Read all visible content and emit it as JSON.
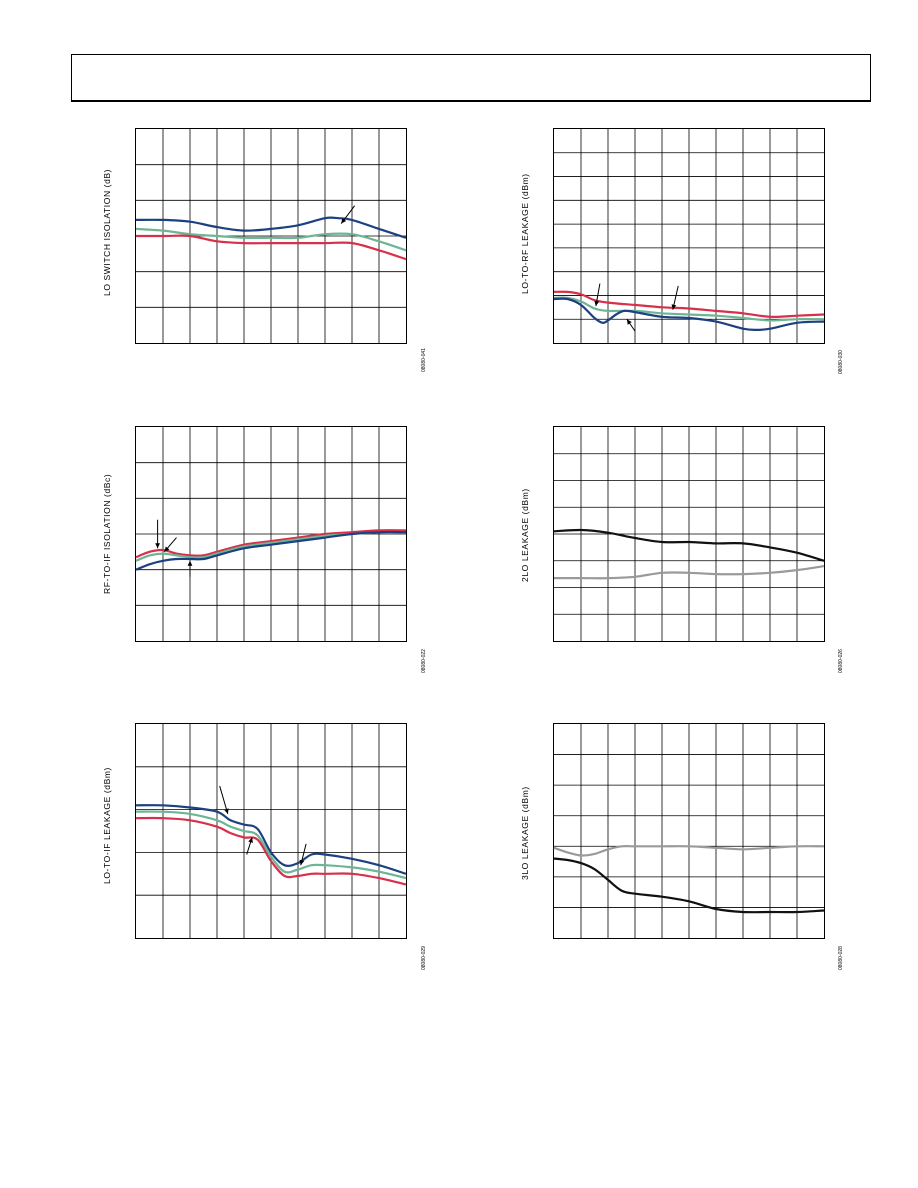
{
  "colors": {
    "navy": "#1c4080",
    "teal": "#6db595",
    "red": "#d6304a",
    "black": "#111111",
    "gray": "#9a9a9a",
    "grid": "#000000"
  },
  "header": {},
  "chart_data": [
    {
      "id": "c1",
      "type": "line",
      "ylabel": "LO SWITCH ISOLATION (dB)",
      "figure_id": "08080-041",
      "grid": true,
      "xlim": [
        0,
        10
      ],
      "ylim": [
        0,
        6
      ],
      "series": [
        {
          "color": "navy",
          "x": [
            0,
            1,
            2,
            3,
            4,
            5,
            6,
            7,
            7.5,
            8,
            9,
            10
          ],
          "y": [
            3.45,
            3.45,
            3.4,
            3.25,
            3.15,
            3.2,
            3.3,
            3.5,
            3.5,
            3.45,
            3.2,
            2.95
          ]
        },
        {
          "color": "teal",
          "x": [
            0,
            1,
            2,
            3,
            4,
            5,
            6,
            7,
            8,
            9,
            10
          ],
          "y": [
            3.2,
            3.15,
            3.05,
            3.0,
            2.95,
            2.95,
            2.95,
            3.05,
            3.05,
            2.85,
            2.6
          ]
        },
        {
          "color": "red",
          "x": [
            0,
            1,
            2,
            3,
            4,
            5,
            6,
            7,
            8,
            9,
            10
          ],
          "y": [
            3.0,
            3.0,
            3.0,
            2.85,
            2.8,
            2.8,
            2.8,
            2.8,
            2.8,
            2.6,
            2.35
          ]
        }
      ],
      "arrows": [
        {
          "from": [
            8.1,
            3.85
          ],
          "to": [
            7.6,
            3.35
          ]
        }
      ]
    },
    {
      "id": "c2",
      "type": "line",
      "ylabel": "LO-TO-RF LEAKAGE (dBm)",
      "figure_id": "08080-030",
      "grid": true,
      "xlim": [
        0,
        10
      ],
      "ylim": [
        0,
        9
      ],
      "series": [
        {
          "color": "red",
          "x": [
            0,
            0.5,
            1,
            1.5,
            2,
            3,
            4,
            5,
            6,
            7,
            8,
            9,
            10
          ],
          "y": [
            2.15,
            2.15,
            2.05,
            1.8,
            1.7,
            1.6,
            1.5,
            1.45,
            1.35,
            1.25,
            1.1,
            1.15,
            1.2
          ]
        },
        {
          "color": "teal",
          "x": [
            0,
            0.5,
            1,
            1.5,
            2,
            3,
            4,
            5,
            6,
            7,
            8,
            9,
            10
          ],
          "y": [
            1.9,
            1.9,
            1.75,
            1.45,
            1.35,
            1.35,
            1.25,
            1.2,
            1.15,
            1.05,
            0.95,
            1.0,
            1.0
          ]
        },
        {
          "color": "navy",
          "x": [
            0,
            0.5,
            1,
            1.5,
            1.8,
            2,
            2.3,
            2.6,
            3,
            4,
            5,
            6,
            7,
            7.5,
            8,
            9,
            10
          ],
          "y": [
            1.85,
            1.85,
            1.6,
            1.05,
            0.85,
            0.95,
            1.2,
            1.35,
            1.3,
            1.1,
            1.05,
            0.9,
            0.6,
            0.55,
            0.6,
            0.85,
            0.9
          ]
        }
      ],
      "arrows": [
        {
          "from": [
            1.7,
            2.5
          ],
          "to": [
            1.55,
            1.55
          ]
        },
        {
          "from": [
            4.6,
            2.4
          ],
          "to": [
            4.4,
            1.4
          ]
        },
        {
          "from": [
            3.0,
            0.5
          ],
          "to": [
            2.7,
            1.0
          ]
        }
      ]
    },
    {
      "id": "c3",
      "type": "line",
      "ylabel": "RF-TO-IF ISOLATION (dBc)",
      "figure_id": "08080-022",
      "grid": true,
      "xlim": [
        0,
        10
      ],
      "ylim": [
        0,
        6
      ],
      "series": [
        {
          "color": "red",
          "x": [
            0,
            0.5,
            1,
            1.5,
            2,
            2.5,
            3,
            4,
            5,
            6,
            7,
            8,
            9,
            10
          ],
          "y": [
            2.35,
            2.5,
            2.55,
            2.45,
            2.4,
            2.4,
            2.5,
            2.7,
            2.8,
            2.9,
            3.0,
            3.05,
            3.1,
            3.1
          ]
        },
        {
          "color": "teal",
          "x": [
            0,
            0.5,
            1,
            1.5,
            2,
            2.5,
            3,
            4,
            5,
            6,
            7,
            8,
            9,
            10
          ],
          "y": [
            2.25,
            2.4,
            2.45,
            2.4,
            2.35,
            2.35,
            2.45,
            2.65,
            2.75,
            2.85,
            2.95,
            3.0,
            3.05,
            3.05
          ]
        },
        {
          "color": "navy",
          "x": [
            0,
            0.5,
            1,
            1.5,
            2,
            2.5,
            3,
            4,
            5,
            6,
            7,
            8,
            9,
            10
          ],
          "y": [
            2.0,
            2.15,
            2.25,
            2.3,
            2.3,
            2.3,
            2.4,
            2.6,
            2.7,
            2.8,
            2.9,
            3.0,
            3.05,
            3.05
          ]
        }
      ],
      "arrows": [
        {
          "from": [
            0.8,
            3.4
          ],
          "to": [
            0.8,
            2.6
          ]
        },
        {
          "from": [
            1.5,
            2.9
          ],
          "to": [
            1.05,
            2.5
          ]
        },
        {
          "from": [
            2.0,
            1.8
          ],
          "to": [
            2.0,
            2.25
          ]
        }
      ]
    },
    {
      "id": "c4",
      "type": "line",
      "ylabel": "2LO LEAKAGE (dBm)",
      "figure_id": "08080-026",
      "grid": true,
      "xlim": [
        0,
        10
      ],
      "ylim": [
        0,
        8
      ],
      "series": [
        {
          "color": "black",
          "x": [
            0,
            1,
            2,
            3,
            4,
            5,
            6,
            7,
            8,
            9,
            10
          ],
          "y": [
            4.1,
            4.15,
            4.05,
            3.85,
            3.7,
            3.7,
            3.65,
            3.65,
            3.5,
            3.3,
            3.0
          ]
        },
        {
          "color": "gray",
          "x": [
            0,
            1,
            2,
            3,
            4,
            5,
            6,
            7,
            8,
            9,
            10
          ],
          "y": [
            2.35,
            2.35,
            2.35,
            2.4,
            2.55,
            2.55,
            2.5,
            2.5,
            2.55,
            2.65,
            2.8
          ]
        }
      ],
      "arrows": []
    },
    {
      "id": "c5",
      "type": "line",
      "ylabel": "LO-TO-IF LEAKAGE (dBm)",
      "figure_id": "08080-029",
      "grid": true,
      "xlim": [
        0,
        10
      ],
      "ylim": [
        0,
        5
      ],
      "series": [
        {
          "color": "navy",
          "x": [
            0,
            1,
            2,
            3,
            3.5,
            4,
            4.5,
            5,
            5.5,
            6,
            6.5,
            7,
            8,
            9,
            10
          ],
          "y": [
            3.1,
            3.1,
            3.05,
            2.95,
            2.75,
            2.65,
            2.55,
            2.0,
            1.7,
            1.75,
            1.95,
            1.95,
            1.85,
            1.7,
            1.5
          ]
        },
        {
          "color": "teal",
          "x": [
            0,
            1,
            2,
            3,
            3.5,
            4,
            4.5,
            5,
            5.5,
            6,
            6.5,
            7,
            8,
            9,
            10
          ],
          "y": [
            2.95,
            2.95,
            2.9,
            2.75,
            2.6,
            2.5,
            2.4,
            1.9,
            1.55,
            1.6,
            1.7,
            1.7,
            1.65,
            1.55,
            1.4
          ]
        },
        {
          "color": "red",
          "x": [
            0,
            1,
            2,
            3,
            3.5,
            4,
            4.5,
            5,
            5.5,
            6,
            6.5,
            7,
            8,
            9,
            10
          ],
          "y": [
            2.8,
            2.8,
            2.75,
            2.6,
            2.45,
            2.35,
            2.3,
            1.8,
            1.45,
            1.45,
            1.5,
            1.5,
            1.5,
            1.4,
            1.25
          ]
        }
      ],
      "arrows": [
        {
          "from": [
            3.1,
            3.55
          ],
          "to": [
            3.4,
            2.9
          ]
        },
        {
          "from": [
            4.1,
            1.95
          ],
          "to": [
            4.3,
            2.35
          ]
        },
        {
          "from": [
            6.3,
            2.2
          ],
          "to": [
            6.1,
            1.7
          ]
        }
      ]
    },
    {
      "id": "c6",
      "type": "line",
      "ylabel": "3LO LEAKAGE (dBm)",
      "figure_id": "08080-028",
      "grid": true,
      "xlim": [
        0,
        10
      ],
      "ylim": [
        0,
        7
      ],
      "series": [
        {
          "color": "gray",
          "x": [
            0,
            0.5,
            1,
            1.5,
            2,
            2.5,
            3,
            4,
            5,
            6,
            7,
            8,
            9,
            10
          ],
          "y": [
            2.95,
            2.8,
            2.7,
            2.75,
            2.9,
            3.0,
            3.0,
            3.0,
            3.0,
            2.95,
            2.9,
            2.95,
            3.0,
            3.0
          ]
        },
        {
          "color": "black",
          "x": [
            0,
            0.5,
            1,
            1.5,
            2,
            2.5,
            3,
            4,
            5,
            6,
            7,
            8,
            9,
            10
          ],
          "y": [
            2.6,
            2.55,
            2.45,
            2.25,
            1.9,
            1.55,
            1.45,
            1.35,
            1.2,
            0.95,
            0.85,
            0.85,
            0.85,
            0.9
          ]
        }
      ],
      "arrows": []
    }
  ]
}
